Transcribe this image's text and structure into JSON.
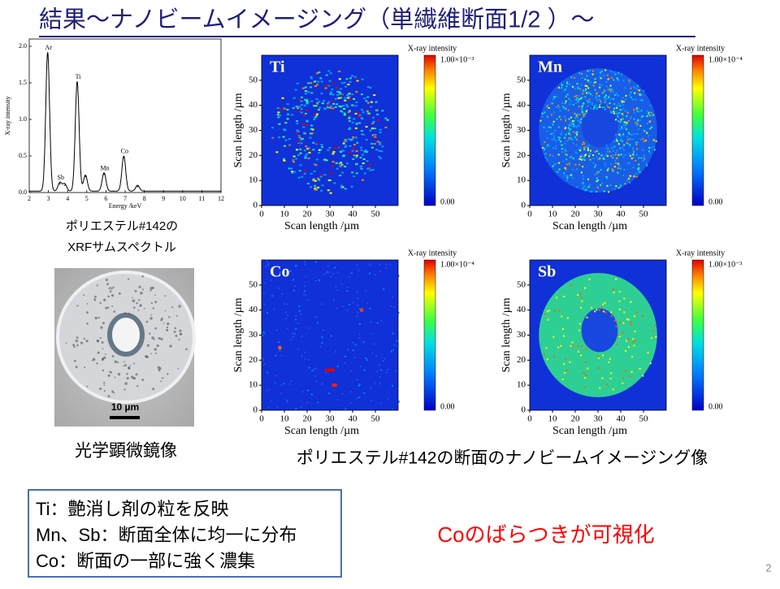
{
  "title": "結果～ナノビームイメージング（単繊維断面1/2 ）～",
  "spectrum": {
    "type": "line",
    "xlabel": "Energy /keV",
    "ylabel": "X-ray intensity",
    "xlim": [
      2,
      12
    ],
    "xticks": [
      2,
      3,
      4,
      5,
      6,
      7,
      8,
      9,
      10,
      11,
      12
    ],
    "ylim": [
      0,
      2.1
    ],
    "yticks": [
      {
        "value": 0,
        "label": "0.0"
      },
      {
        "value": 0.5,
        "label": "0.5"
      },
      {
        "value": 1,
        "label": "1.0"
      },
      {
        "value": 1.5,
        "label": "1.5"
      },
      {
        "value": 2,
        "label": "2.0"
      }
    ],
    "peaks": [
      {
        "label": "Ar",
        "x": 2.96,
        "y": 1.9
      },
      {
        "label": "Sb",
        "x": 3.6,
        "y": 0.12
      },
      {
        "label": null,
        "x": 3.85,
        "y": 0.1
      },
      {
        "label": "Ti",
        "x": 4.5,
        "y": 1.5
      },
      {
        "label": null,
        "x": 4.93,
        "y": 0.22
      },
      {
        "label": "Mn",
        "x": 5.9,
        "y": 0.25
      },
      {
        "label": "Co",
        "x": 6.93,
        "y": 0.48
      },
      {
        "label": null,
        "x": 7.65,
        "y": 0.08
      }
    ]
  },
  "spectrum_caption": [
    "ポリエステル#142の",
    "XRFサムスペクトル"
  ],
  "photo": {
    "scale_label": "10 µm",
    "caption": "光学顕微鏡像"
  },
  "maps": {
    "xlabel": "Scan length /µm",
    "ylabel": "Scan length /µm",
    "xlim": [
      0,
      60
    ],
    "ylim": [
      0,
      60
    ],
    "xticks": [
      0,
      10,
      20,
      30,
      40,
      50
    ],
    "yticks": [
      0,
      10,
      20,
      30,
      40,
      50
    ],
    "colorbar_title": "X-ray intensity",
    "panels": [
      {
        "element": "Ti",
        "max_label": "1.00×10⁻³",
        "min_label": "0.00"
      },
      {
        "element": "Mn",
        "max_label": "1.00×10⁻⁴",
        "min_label": "0.00"
      },
      {
        "element": "Co",
        "max_label": "1.00×10⁻⁴",
        "min_label": "0.00"
      },
      {
        "element": "Sb",
        "max_label": "1.00×10⁻³",
        "min_label": "0.00"
      }
    ],
    "caption": "ポリエステル#142の断面のナノビームイメージング像"
  },
  "notes": [
    "Ti：艶消し剤の粒を反映",
    "Mn、Sb：断面全体に均一に分布",
    "Co：断面の一部に強く濃集"
  ],
  "highlight": "Coのばらつきが可視化",
  "page_number": "2"
}
